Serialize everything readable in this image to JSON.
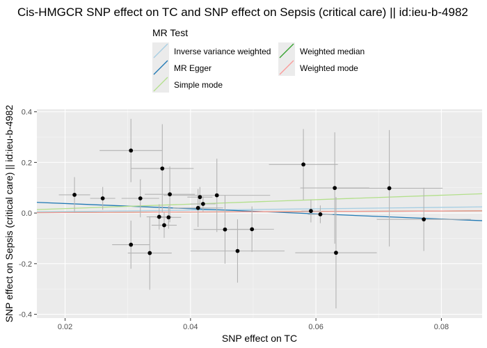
{
  "chart_data": {
    "type": "scatter",
    "title": "Cis-HMGCR SNP effect on TC and SNP effect on Sepsis (critical care) || id:ieu-b-4982",
    "xlabel": "SNP effect on TC",
    "ylabel": "SNP effect on Sepsis (critical care) || id:ieu-b-4982",
    "xlim": [
      0.0155,
      0.0865
    ],
    "ylim": [
      -0.415,
      0.41
    ],
    "xticks": [
      0.02,
      0.04,
      0.06,
      0.08
    ],
    "xtick_labels": [
      "0.02",
      "0.04",
      "0.06",
      "0.08"
    ],
    "yticks": [
      -0.4,
      -0.2,
      0.0,
      0.2,
      0.4
    ],
    "ytick_labels": [
      "-0.4",
      "-0.2",
      "0.0",
      "0.2",
      "0.4"
    ],
    "grid": true,
    "legend": {
      "title": "MR Test",
      "position": "top",
      "entries": [
        {
          "label": "Inverse variance weighted",
          "color": "#a6cee3"
        },
        {
          "label": "MR Egger",
          "color": "#1f78b4"
        },
        {
          "label": "Simple mode",
          "color": "#b2df8a"
        },
        {
          "label": "Weighted median",
          "color": "#33a02c"
        },
        {
          "label": "Weighted mode",
          "color": "#fb9a99"
        }
      ]
    },
    "points": [
      {
        "x": 0.0215,
        "y": 0.072,
        "xerr": 0.0025,
        "yerr": 0.07
      },
      {
        "x": 0.026,
        "y": 0.058,
        "xerr": 0.002,
        "yerr": 0.045
      },
      {
        "x": 0.0305,
        "y": 0.247,
        "xerr": 0.005,
        "yerr": 0.125
      },
      {
        "x": 0.0305,
        "y": -0.125,
        "xerr": 0.003,
        "yerr": 0.095
      },
      {
        "x": 0.032,
        "y": 0.058,
        "xerr": 0.003,
        "yerr": 0.075
      },
      {
        "x": 0.0335,
        "y": -0.158,
        "xerr": 0.0035,
        "yerr": 0.145
      },
      {
        "x": 0.035,
        "y": -0.015,
        "xerr": 0.002,
        "yerr": 0.05
      },
      {
        "x": 0.0355,
        "y": 0.176,
        "xerr": 0.005,
        "yerr": 0.175
      },
      {
        "x": 0.0358,
        "y": -0.048,
        "xerr": 0.002,
        "yerr": 0.05
      },
      {
        "x": 0.0365,
        "y": -0.017,
        "xerr": 0.002,
        "yerr": 0.045
      },
      {
        "x": 0.0367,
        "y": 0.074,
        "xerr": 0.004,
        "yerr": 0.11
      },
      {
        "x": 0.0412,
        "y": 0.02,
        "xerr": 0.004,
        "yerr": 0.075
      },
      {
        "x": 0.0415,
        "y": 0.063,
        "xerr": 0.002,
        "yerr": 0.04
      },
      {
        "x": 0.042,
        "y": 0.036,
        "xerr": 0.002,
        "yerr": 0.03
      },
      {
        "x": 0.0442,
        "y": 0.07,
        "xerr": 0.0085,
        "yerr": 0.145
      },
      {
        "x": 0.0455,
        "y": -0.065,
        "xerr": 0.005,
        "yerr": 0.135
      },
      {
        "x": 0.0475,
        "y": -0.15,
        "xerr": 0.0075,
        "yerr": 0.125
      },
      {
        "x": 0.0498,
        "y": -0.064,
        "xerr": 0.0035,
        "yerr": 0.09
      },
      {
        "x": 0.058,
        "y": 0.192,
        "xerr": 0.0055,
        "yerr": 0.14
      },
      {
        "x": 0.0592,
        "y": 0.008,
        "xerr": 0.0015,
        "yerr": 0.045
      },
      {
        "x": 0.0607,
        "y": -0.005,
        "xerr": 0.002,
        "yerr": 0.035
      },
      {
        "x": 0.063,
        "y": 0.099,
        "xerr": 0.0055,
        "yerr": 0.22
      },
      {
        "x": 0.0632,
        "y": -0.157,
        "xerr": 0.0065,
        "yerr": 0.22
      },
      {
        "x": 0.0717,
        "y": 0.098,
        "xerr": 0.0085,
        "yerr": 0.23
      },
      {
        "x": 0.0772,
        "y": -0.025,
        "xerr": 0.0075,
        "yerr": 0.125
      }
    ],
    "lines": [
      {
        "name": "Inverse variance weighted",
        "color": "#a6cee3",
        "slope": 0.28,
        "intercept": 0.0
      },
      {
        "name": "MR Egger",
        "color": "#1f78b4",
        "slope": -1.02,
        "intercept": 0.058
      },
      {
        "name": "Simple mode",
        "color": "#b2df8a",
        "slope": 0.88,
        "intercept": 0.0
      },
      {
        "name": "Weighted median",
        "color": "#33a02c",
        "slope": 0.1,
        "intercept": 0.0
      },
      {
        "name": "Weighted mode",
        "color": "#fb9a99",
        "slope": 0.1,
        "intercept": 0.0
      }
    ]
  }
}
